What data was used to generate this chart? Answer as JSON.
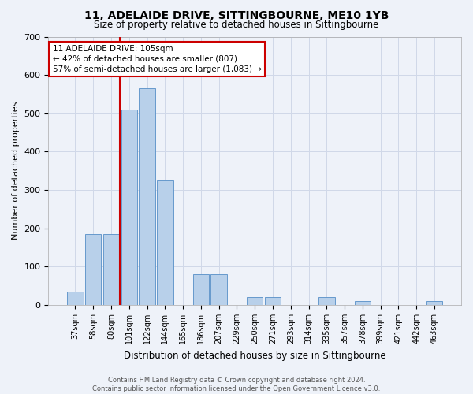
{
  "title1": "11, ADELAIDE DRIVE, SITTINGBOURNE, ME10 1YB",
  "title2": "Size of property relative to detached houses in Sittingbourne",
  "xlabel": "Distribution of detached houses by size in Sittingbourne",
  "ylabel": "Number of detached properties",
  "footer_line1": "Contains HM Land Registry data © Crown copyright and database right 2024.",
  "footer_line2": "Contains public sector information licensed under the Open Government Licence v3.0.",
  "categories": [
    "37sqm",
    "58sqm",
    "80sqm",
    "101sqm",
    "122sqm",
    "144sqm",
    "165sqm",
    "186sqm",
    "207sqm",
    "229sqm",
    "250sqm",
    "271sqm",
    "293sqm",
    "314sqm",
    "335sqm",
    "357sqm",
    "378sqm",
    "399sqm",
    "421sqm",
    "442sqm",
    "463sqm"
  ],
  "values": [
    35,
    185,
    185,
    510,
    565,
    325,
    0,
    80,
    80,
    0,
    20,
    20,
    0,
    0,
    20,
    0,
    10,
    0,
    0,
    0,
    10
  ],
  "bar_color": "#b8d0ea",
  "bar_edge_color": "#6699cc",
  "grid_color": "#d0d8e8",
  "bg_color": "#eef2f9",
  "vline_color": "#cc0000",
  "vline_x": 2.5,
  "annotation_text": "11 ADELAIDE DRIVE: 105sqm\n← 42% of detached houses are smaller (807)\n57% of semi-detached houses are larger (1,083) →",
  "annotation_box_color": "#ffffff",
  "annotation_box_edge": "#cc0000",
  "ylim": [
    0,
    700
  ],
  "yticks": [
    0,
    100,
    200,
    300,
    400,
    500,
    600,
    700
  ]
}
